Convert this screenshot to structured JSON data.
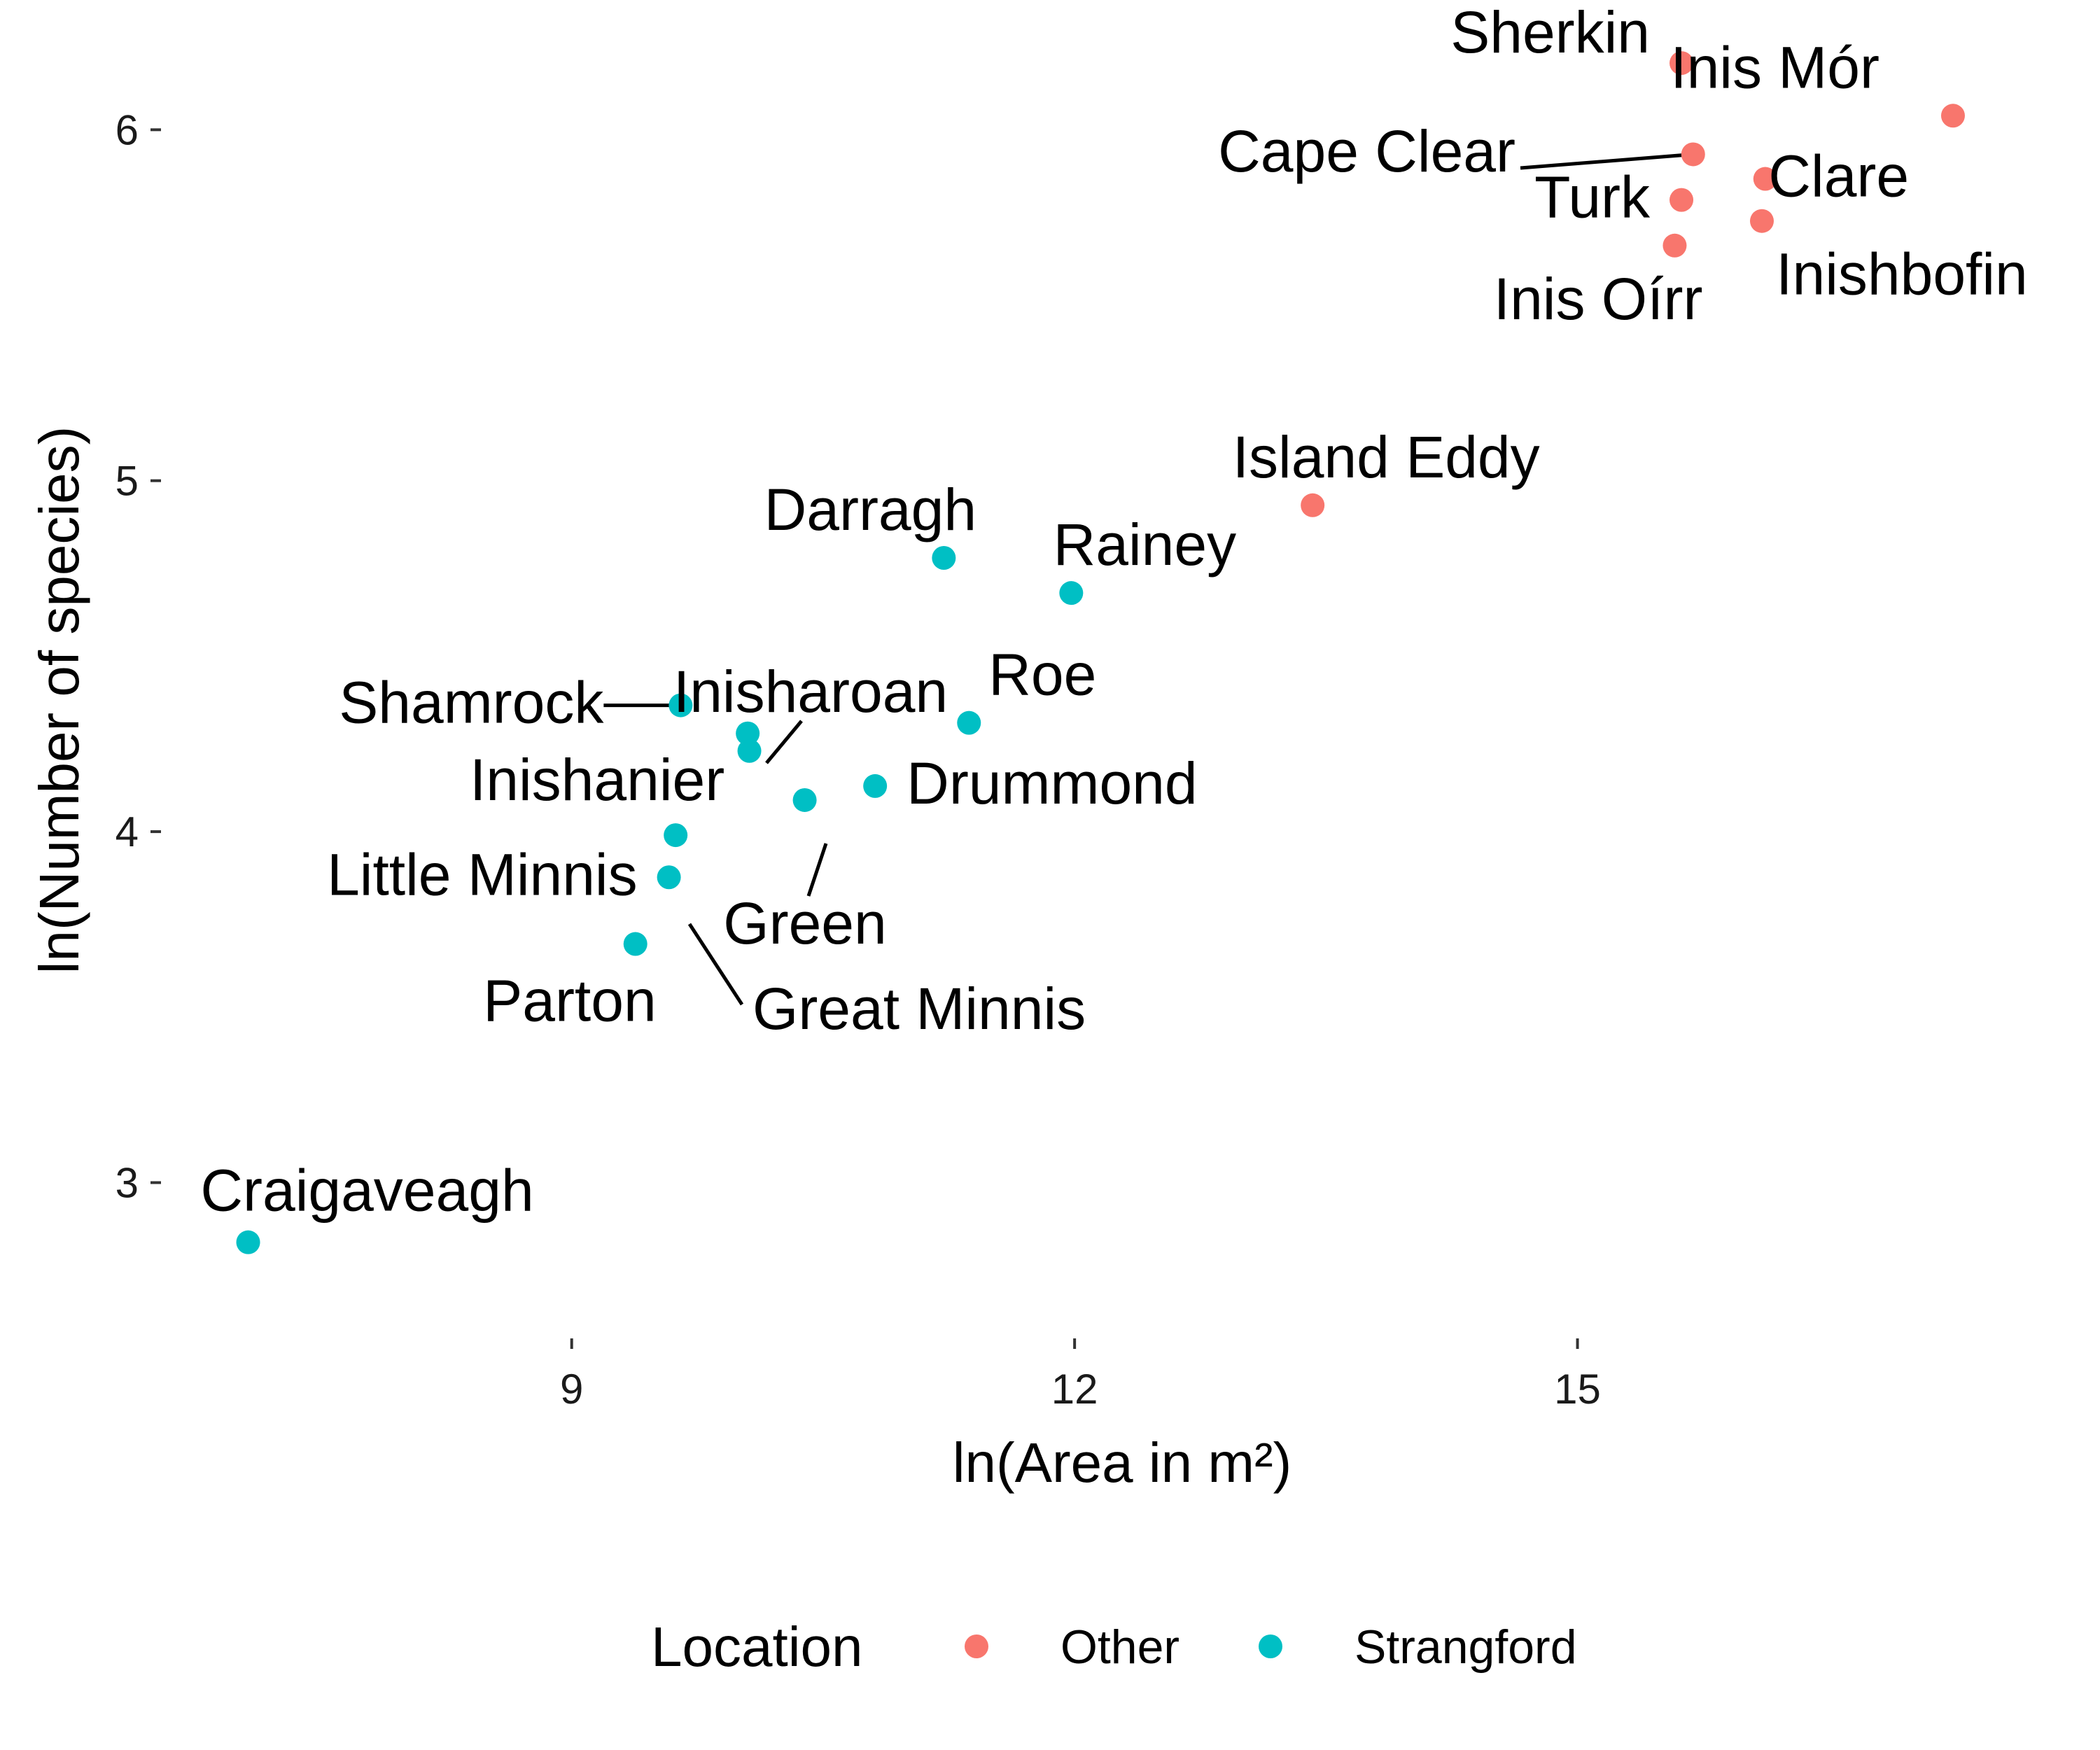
{
  "chart_data": {
    "type": "scatter",
    "xlabel": "ln(Area in m²)",
    "ylabel": "ln(Number of species)",
    "xlim": [
      6.55,
      17.95
    ],
    "ylim": [
      2.6,
      6.25
    ],
    "x_ticks": [
      9,
      12,
      15
    ],
    "y_ticks": [
      3,
      4,
      5,
      6
    ],
    "grid": false,
    "legend": {
      "title": "Location",
      "position": "bottom",
      "entries": [
        {
          "name": "Other",
          "color": "#F8766D"
        },
        {
          "name": "Strangford",
          "color": "#00BFC4"
        }
      ]
    },
    "series": [
      {
        "name": "Other",
        "color": "#F8766D",
        "points": [
          {
            "label": "Sherkin",
            "x": 15.62,
            "y": 6.19
          },
          {
            "label": "Inis Mór",
            "x": 17.24,
            "y": 6.04
          },
          {
            "label": "Cape Clear",
            "x": 15.69,
            "y": 5.93
          },
          {
            "label": "Clare",
            "x": 16.12,
            "y": 5.86
          },
          {
            "label": "Turk",
            "x": 15.62,
            "y": 5.8
          },
          {
            "label": "Inishbofin",
            "x": 16.1,
            "y": 5.74
          },
          {
            "label": "Inis Oírr",
            "x": 15.58,
            "y": 5.67
          },
          {
            "label": "Island Eddy",
            "x": 13.42,
            "y": 4.93
          }
        ]
      },
      {
        "name": "Strangford",
        "color": "#00BFC4",
        "points": [
          {
            "label": "Darragh",
            "x": 11.22,
            "y": 4.78
          },
          {
            "label": "Rainey",
            "x": 11.98,
            "y": 4.68
          },
          {
            "label": "Shamrock",
            "x": 9.65,
            "y": 4.36
          },
          {
            "label": "Inisharoan",
            "x": 10.05,
            "y": 4.28
          },
          {
            "label": "Roe",
            "x": 11.37,
            "y": 4.31
          },
          {
            "label": "Drummond",
            "x": 10.81,
            "y": 4.13
          },
          {
            "label": "Green",
            "x": 10.39,
            "y": 4.09
          },
          {
            "label": "Inishanier",
            "x": 9.62,
            "y": 3.99
          },
          {
            "label": "Little Minnis",
            "x": 9.58,
            "y": 3.87
          },
          {
            "label": "Great Minnis",
            "x": 10.06,
            "y": 4.23
          },
          {
            "label": "Parton",
            "x": 9.38,
            "y": 3.68
          },
          {
            "label": "Craigaveagh",
            "x": 7.07,
            "y": 2.83
          }
        ]
      }
    ]
  }
}
